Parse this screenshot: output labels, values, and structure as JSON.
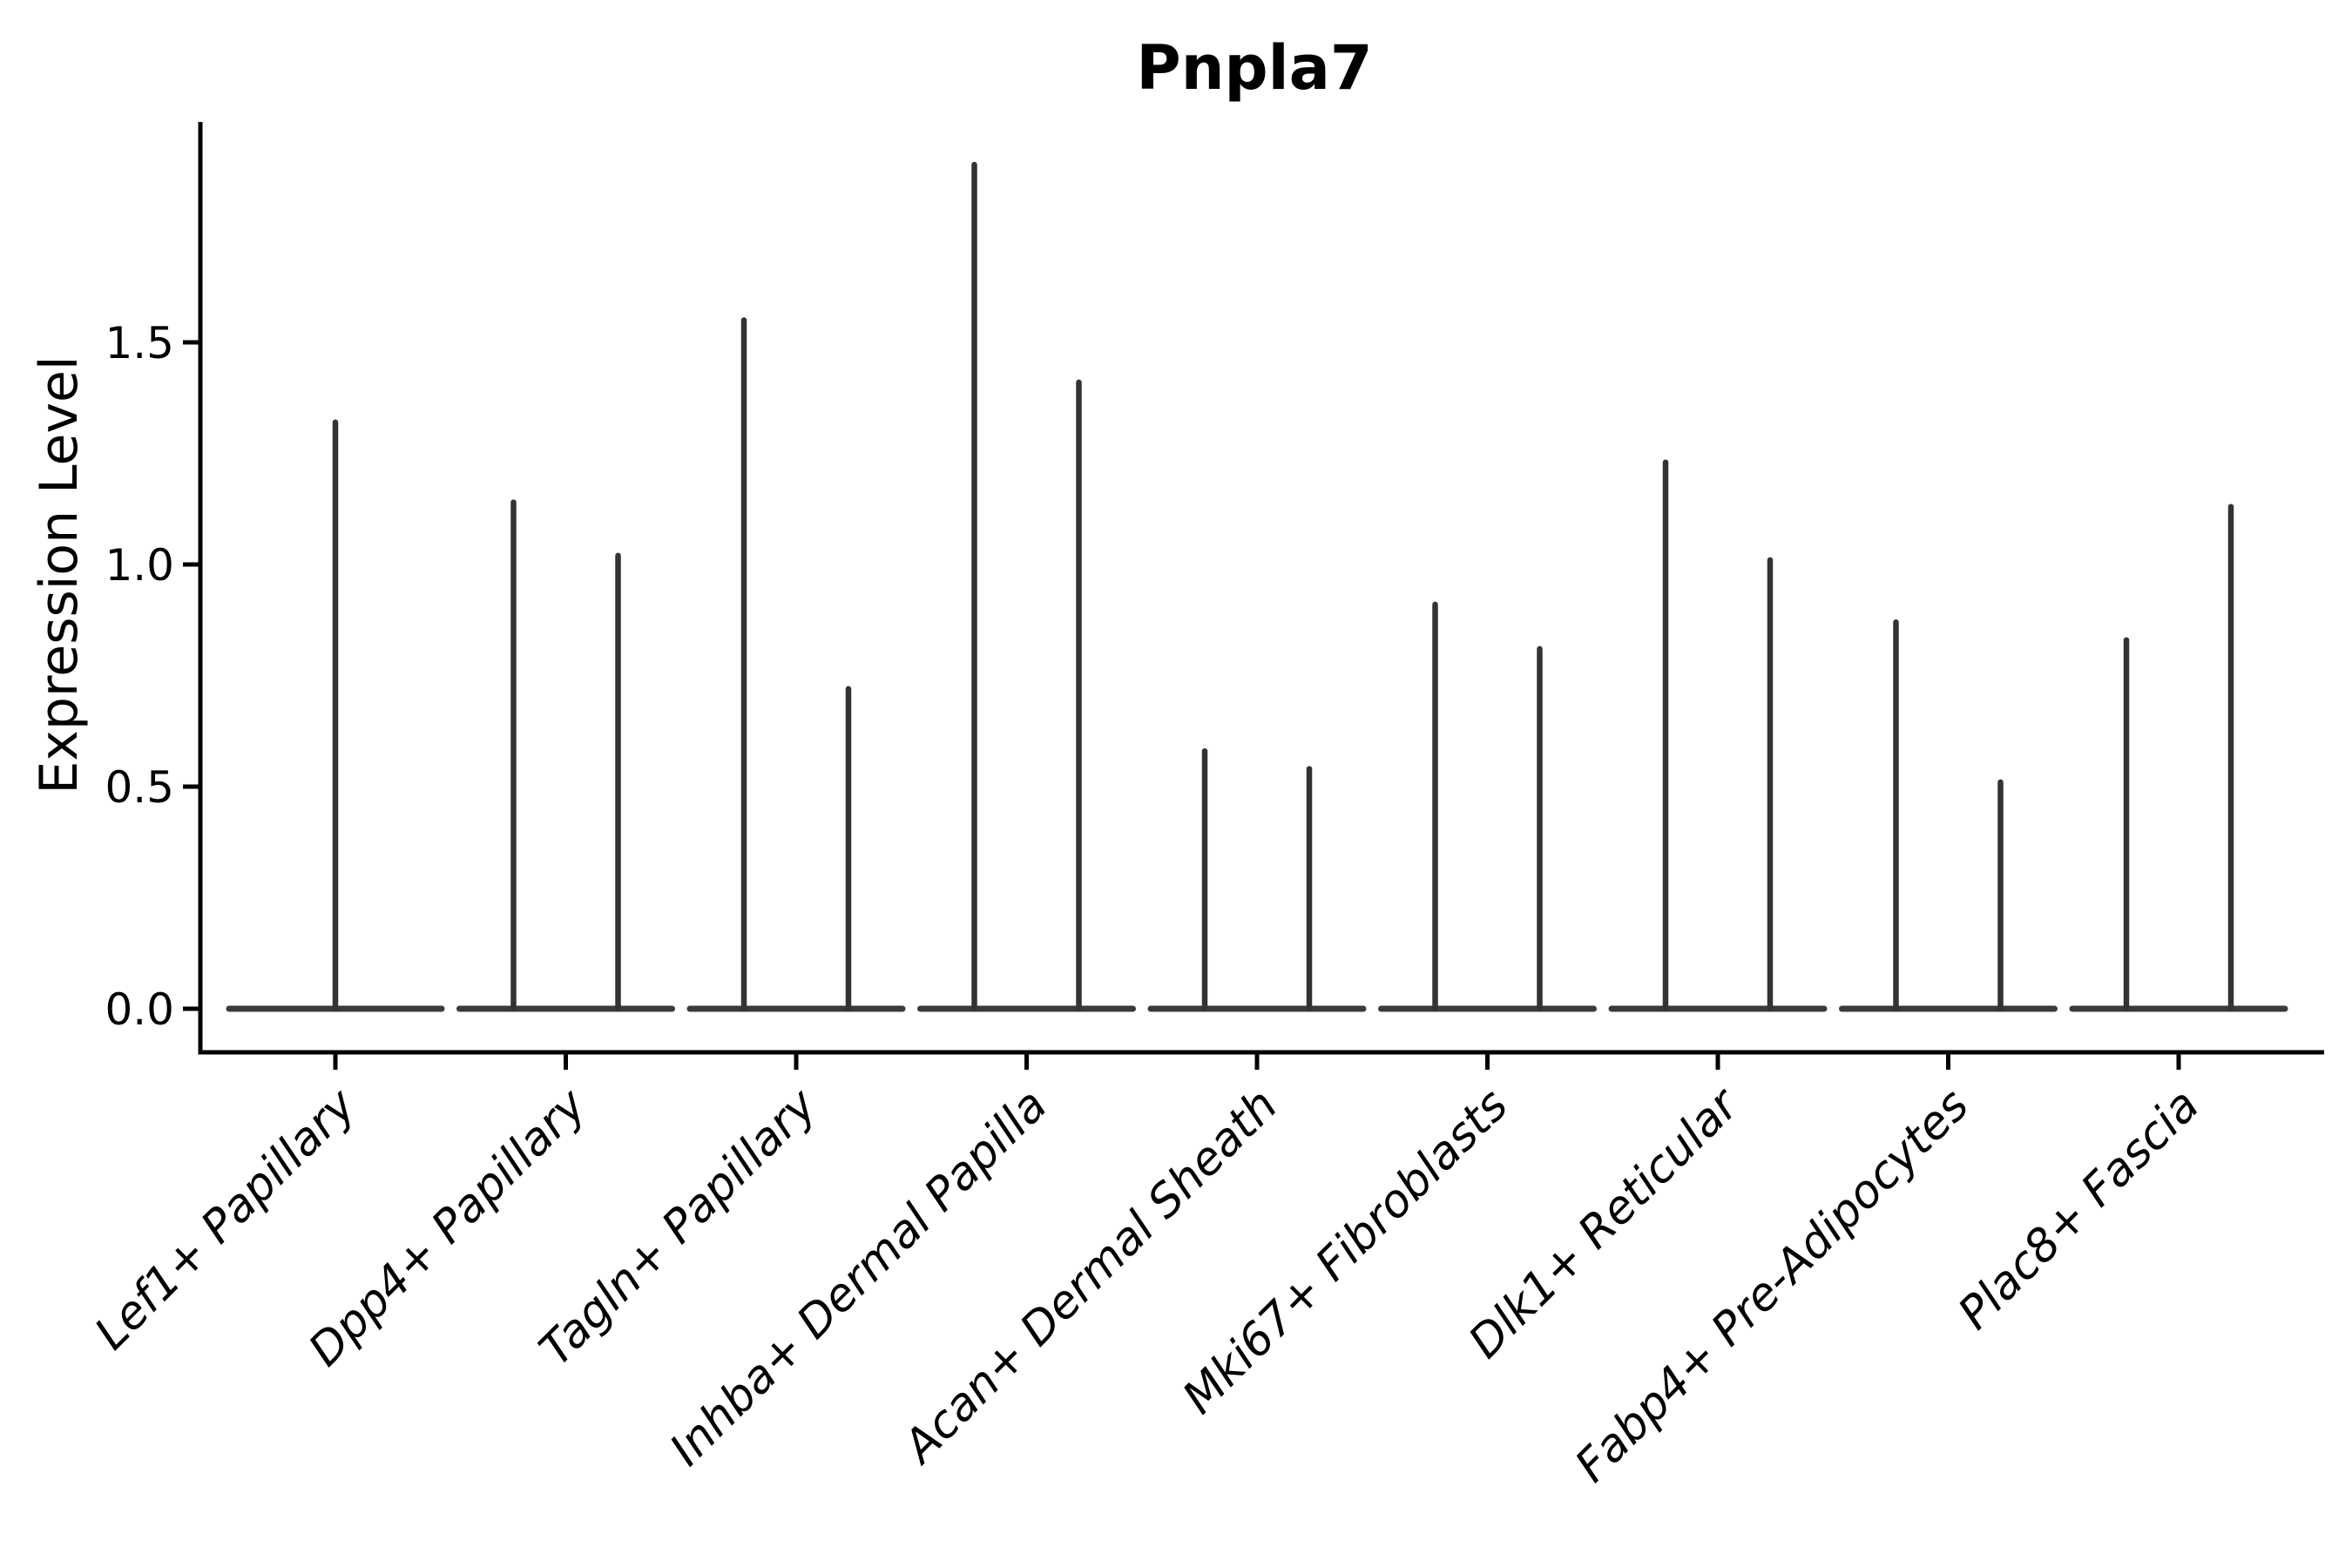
{
  "page": {
    "background_color": "#ffffff",
    "text_color": "#000000"
  },
  "chart": {
    "title": "Pnpla7",
    "ylabel": "Expression Level",
    "axis_color": "#000000",
    "violin_color": "#333333",
    "baseline_color": "#3a3a3a"
  },
  "chart_data": {
    "type": "violin",
    "title": "Pnpla7",
    "xlabel": "",
    "ylabel": "Expression Level",
    "ylim": [
      -0.09,
      2.0
    ],
    "yticks": [
      0.0,
      0.5,
      1.0,
      1.5
    ],
    "ytick_labels": [
      "0.0",
      "0.5",
      "1.0",
      "1.5"
    ],
    "grid": false,
    "legend_position": "none",
    "xtick_label_rotation_deg": 45,
    "categories": [
      "Lef1+ Papillary",
      "Dpp4+ Papillary",
      "Tagln+ Papillary",
      "Inhba+ Dermal Papilla",
      "Acan+ Dermal Sheath",
      "Mki67+ Fibroblasts",
      "Dlk1+ Reticular",
      "Fabp4+ Pre-Adipocytes",
      "Plac8+ Fascia"
    ],
    "violins": [
      {
        "category": "Lef1+ Papillary",
        "max_values": [
          1.32
        ]
      },
      {
        "category": "Dpp4+ Papillary",
        "max_values": [
          1.14,
          1.02
        ]
      },
      {
        "category": "Tagln+ Papillary",
        "max_values": [
          1.55,
          0.72
        ]
      },
      {
        "category": "Inhba+ Dermal Papilla",
        "max_values": [
          1.9,
          1.41
        ]
      },
      {
        "category": "Acan+ Dermal Sheath",
        "max_values": [
          0.58,
          0.54
        ]
      },
      {
        "category": "Mki67+ Fibroblasts",
        "max_values": [
          0.91,
          0.81
        ]
      },
      {
        "category": "Dlk1+ Reticular",
        "max_values": [
          1.23,
          1.01
        ]
      },
      {
        "category": "Fabp4+ Pre-Adipocytes",
        "max_values": [
          0.87,
          0.51
        ]
      },
      {
        "category": "Plac8+ Fascia",
        "max_values": [
          0.83,
          1.13
        ]
      }
    ],
    "description": "Needle-thin violins: distribution mass concentrated at 0 (flat horizontal base per category) with a thin spike up to each group's maximum expression value."
  }
}
